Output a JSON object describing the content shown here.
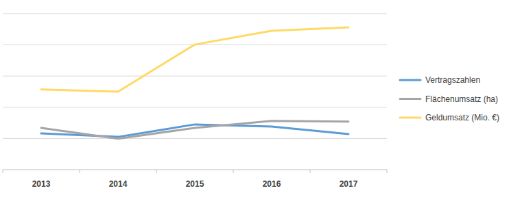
{
  "chart_data": {
    "type": "line",
    "categories": [
      "2013",
      "2014",
      "2015",
      "2016",
      "2017"
    ],
    "series": [
      {
        "name": "Vertragszahlen",
        "color": "#5b9bd5",
        "values": [
          1.16,
          1.05,
          1.45,
          1.38,
          1.14
        ]
      },
      {
        "name": "Flächenumsatz (ha)",
        "color": "#a5a5a5",
        "values": [
          1.34,
          0.99,
          1.34,
          1.56,
          1.54
        ]
      },
      {
        "name": "Geldumsatz (Mio. €)",
        "color": "#ffd966",
        "values": [
          2.57,
          2.5,
          4.01,
          4.45,
          4.56
        ]
      }
    ],
    "ylim": [
      0,
      5
    ],
    "yticks": [
      0,
      1,
      2,
      3,
      4,
      5
    ],
    "grid": true,
    "legend": "right",
    "tick_labels": "x"
  }
}
